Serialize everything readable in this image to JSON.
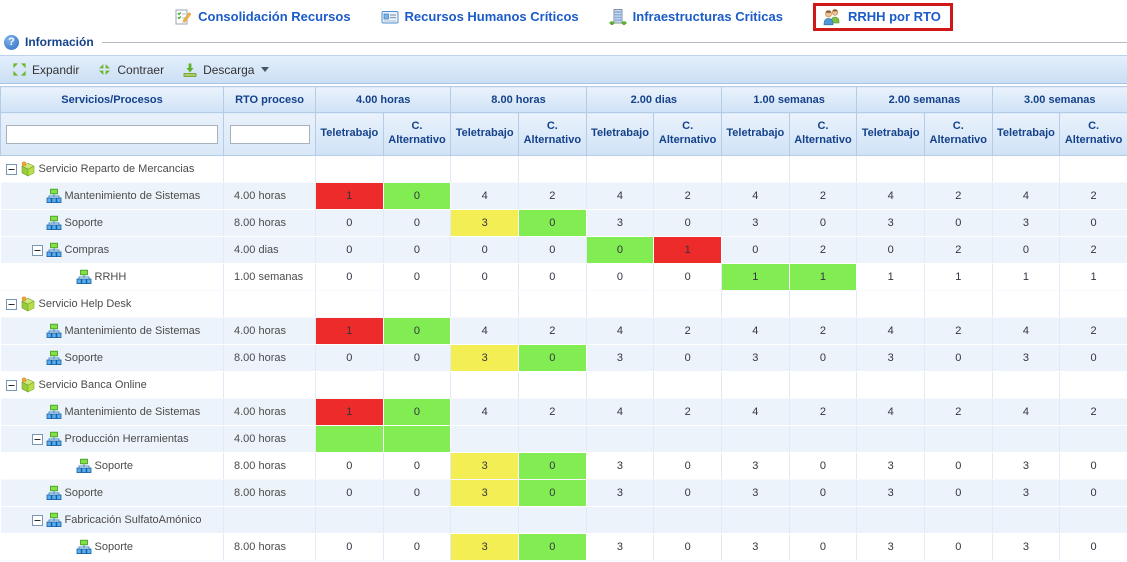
{
  "tabs": [
    {
      "label": "Consolidación Recursos",
      "icon": "checklist-pencil-icon",
      "highlighted": false
    },
    {
      "label": "Recursos Humanos Críticos",
      "icon": "vcard-icon",
      "highlighted": false
    },
    {
      "label": "Infraestructuras Criticas",
      "icon": "building-icon",
      "highlighted": false
    },
    {
      "label": "RRHH por RTO",
      "icon": "people-icon",
      "highlighted": true
    }
  ],
  "annotation": {
    "highlight_box_color": "#d01818"
  },
  "info_section": {
    "label": "Información",
    "icon": "help-icon"
  },
  "toolbar": {
    "expand_label": "Expandir",
    "expand_icon": "expand-arrows-icon",
    "collapse_label": "Contraer",
    "collapse_icon": "collapse-arrows-icon",
    "download_label": "Descarga",
    "download_icon": "download-icon",
    "download_menu_icon": "dropdown-caret-icon"
  },
  "table": {
    "col1_header": "Servicios/Procesos",
    "col2_header": "RTO proceso",
    "periods": [
      "4.00 horas",
      "8.00 horas",
      "2.00 dias",
      "1.00 semanas",
      "2.00 semanas",
      "3.00 semanas"
    ],
    "subcolumns": [
      "Teletrabajo",
      "C. Alternativo"
    ],
    "filters": {
      "services_value": "",
      "rto_value": ""
    },
    "colors": {
      "red": "#ee2b2b",
      "green": "#82ed52",
      "yellow": "#f4ee55"
    },
    "rows": [
      {
        "label": "Servicio Reparto de Mercancias",
        "depth": 0,
        "expander": true,
        "icon": "service-box-icon",
        "rto": "",
        "cells": []
      },
      {
        "label": "Mantenimiento de Sistemas",
        "depth": 1,
        "expander": false,
        "icon": "sitemap-icon",
        "rto": "4.00 horas",
        "cells": [
          [
            "1",
            "red"
          ],
          [
            "0",
            "green"
          ],
          [
            "4"
          ],
          [
            "2"
          ],
          [
            "4"
          ],
          [
            "2"
          ],
          [
            "4"
          ],
          [
            "2"
          ],
          [
            "4"
          ],
          [
            "2"
          ],
          [
            "4"
          ],
          [
            "2"
          ]
        ]
      },
      {
        "label": "Soporte",
        "depth": 1,
        "expander": false,
        "icon": "sitemap-icon",
        "rto": "8.00 horas",
        "cells": [
          [
            "0"
          ],
          [
            "0"
          ],
          [
            "3",
            "yellow"
          ],
          [
            "0",
            "green"
          ],
          [
            "3"
          ],
          [
            "0"
          ],
          [
            "3"
          ],
          [
            "0"
          ],
          [
            "3"
          ],
          [
            "0"
          ],
          [
            "3"
          ],
          [
            "0"
          ]
        ]
      },
      {
        "label": "Compras",
        "depth": 1,
        "expander": true,
        "icon": "sitemap-icon",
        "rto": "4.00 dias",
        "cells": [
          [
            "0"
          ],
          [
            "0"
          ],
          [
            "0"
          ],
          [
            "0"
          ],
          [
            "0",
            "green"
          ],
          [
            "1",
            "red"
          ],
          [
            "0"
          ],
          [
            "2"
          ],
          [
            "0"
          ],
          [
            "2"
          ],
          [
            "0"
          ],
          [
            "2"
          ]
        ]
      },
      {
        "label": "RRHH",
        "depth": 2,
        "expander": false,
        "icon": "sitemap-icon",
        "rto": "1.00 semanas",
        "cells": [
          [
            "0"
          ],
          [
            "0"
          ],
          [
            "0"
          ],
          [
            "0"
          ],
          [
            "0"
          ],
          [
            "0"
          ],
          [
            "1",
            "green"
          ],
          [
            "1",
            "green"
          ],
          [
            "1"
          ],
          [
            "1"
          ],
          [
            "1"
          ],
          [
            "1"
          ]
        ]
      },
      {
        "label": "Servicio Help Desk",
        "depth": 0,
        "expander": true,
        "icon": "service-box-icon",
        "rto": "",
        "cells": []
      },
      {
        "label": "Mantenimiento de Sistemas",
        "depth": 1,
        "expander": false,
        "icon": "sitemap-icon",
        "rto": "4.00 horas",
        "cells": [
          [
            "1",
            "red"
          ],
          [
            "0",
            "green"
          ],
          [
            "4"
          ],
          [
            "2"
          ],
          [
            "4"
          ],
          [
            "2"
          ],
          [
            "4"
          ],
          [
            "2"
          ],
          [
            "4"
          ],
          [
            "2"
          ],
          [
            "4"
          ],
          [
            "2"
          ]
        ]
      },
      {
        "label": "Soporte",
        "depth": 1,
        "expander": false,
        "icon": "sitemap-icon",
        "rto": "8.00 horas",
        "cells": [
          [
            "0"
          ],
          [
            "0"
          ],
          [
            "3",
            "yellow"
          ],
          [
            "0",
            "green"
          ],
          [
            "3"
          ],
          [
            "0"
          ],
          [
            "3"
          ],
          [
            "0"
          ],
          [
            "3"
          ],
          [
            "0"
          ],
          [
            "3"
          ],
          [
            "0"
          ]
        ]
      },
      {
        "label": "Servicio Banca Online",
        "depth": 0,
        "expander": true,
        "icon": "service-box-icon",
        "rto": "",
        "cells": []
      },
      {
        "label": "Mantenimiento de Sistemas",
        "depth": 1,
        "expander": false,
        "icon": "sitemap-icon",
        "rto": "4.00 horas",
        "cells": [
          [
            "1",
            "red"
          ],
          [
            "0",
            "green"
          ],
          [
            "4"
          ],
          [
            "2"
          ],
          [
            "4"
          ],
          [
            "2"
          ],
          [
            "4"
          ],
          [
            "2"
          ],
          [
            "4"
          ],
          [
            "2"
          ],
          [
            "4"
          ],
          [
            "2"
          ]
        ]
      },
      {
        "label": "Producción Herramientas",
        "depth": 1,
        "expander": true,
        "icon": "sitemap-icon",
        "rto": "4.00 horas",
        "cells": [
          [
            "",
            "green"
          ],
          [
            "",
            "green"
          ],
          [
            ""
          ],
          [
            ""
          ],
          [
            ""
          ],
          [
            ""
          ],
          [
            ""
          ],
          [
            ""
          ],
          [
            ""
          ],
          [
            ""
          ],
          [
            ""
          ],
          [
            ""
          ]
        ]
      },
      {
        "label": "Soporte",
        "depth": 2,
        "expander": false,
        "icon": "sitemap-icon",
        "rto": "8.00 horas",
        "cells": [
          [
            "0"
          ],
          [
            "0"
          ],
          [
            "3",
            "yellow"
          ],
          [
            "0",
            "green"
          ],
          [
            "3"
          ],
          [
            "0"
          ],
          [
            "3"
          ],
          [
            "0"
          ],
          [
            "3"
          ],
          [
            "0"
          ],
          [
            "3"
          ],
          [
            "0"
          ]
        ]
      },
      {
        "label": "Soporte",
        "depth": 1,
        "expander": false,
        "icon": "sitemap-icon",
        "rto": "8.00 horas",
        "cells": [
          [
            "0"
          ],
          [
            "0"
          ],
          [
            "3",
            "yellow"
          ],
          [
            "0",
            "green"
          ],
          [
            "3"
          ],
          [
            "0"
          ],
          [
            "3"
          ],
          [
            "0"
          ],
          [
            "3"
          ],
          [
            "0"
          ],
          [
            "3"
          ],
          [
            "0"
          ]
        ]
      },
      {
        "label": "Fabricación SulfatoAmónico",
        "depth": 1,
        "expander": true,
        "icon": "sitemap-icon",
        "rto": "",
        "cells": [
          [
            ""
          ],
          [
            ""
          ],
          [
            ""
          ],
          [
            ""
          ],
          [
            ""
          ],
          [
            ""
          ],
          [
            ""
          ],
          [
            ""
          ],
          [
            ""
          ],
          [
            ""
          ],
          [
            ""
          ],
          [
            ""
          ]
        ]
      },
      {
        "label": "Soporte",
        "depth": 2,
        "expander": false,
        "icon": "sitemap-icon",
        "rto": "8.00 horas",
        "cells": [
          [
            "0"
          ],
          [
            "0"
          ],
          [
            "3",
            "yellow"
          ],
          [
            "0",
            "green"
          ],
          [
            "3"
          ],
          [
            "0"
          ],
          [
            "3"
          ],
          [
            "0"
          ],
          [
            "3"
          ],
          [
            "0"
          ],
          [
            "3"
          ],
          [
            "0"
          ]
        ]
      }
    ]
  }
}
